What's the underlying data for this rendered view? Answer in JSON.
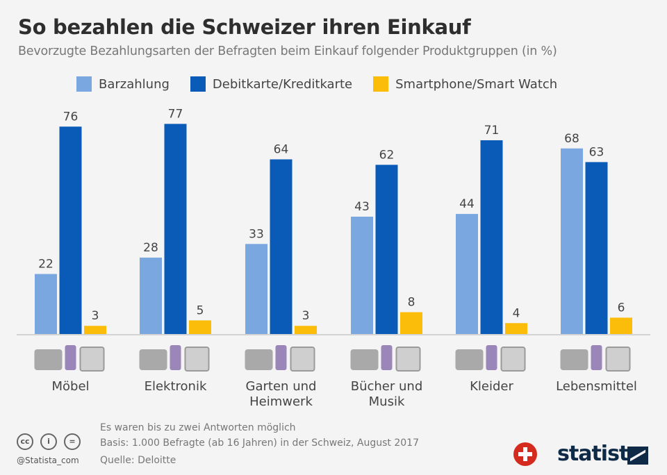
{
  "title": "So bezahlen die Schweizer ihren Einkauf",
  "subtitle": "Bevorzugte Bezahlungsarten der Befragten beim Einkauf folgender Produktgruppen (in %)",
  "chart_data": {
    "type": "bar",
    "title": "So bezahlen die Schweizer ihren Einkauf",
    "subtitle": "Bevorzugte Bezahlungsarten der Befragten beim Einkauf folgender Produktgruppen (in %)",
    "categories": [
      "Möbel",
      "Elektronik",
      "Garten und Heimwerk",
      "Bücher und Musik",
      "Kleider",
      "Lebensmittel"
    ],
    "category_lines": [
      [
        "Möbel"
      ],
      [
        "Elektronik"
      ],
      [
        "Garten und",
        "Heimwerk"
      ],
      [
        "Bücher und",
        "Musik"
      ],
      [
        "Kleider"
      ],
      [
        "Lebensmittel"
      ]
    ],
    "series": [
      {
        "name": "Barzahlung",
        "color": "#7ba7e1",
        "values": [
          22,
          28,
          33,
          43,
          44,
          68
        ]
      },
      {
        "name": "Debitkarte/Kreditkarte",
        "color": "#0a5bb8",
        "values": [
          76,
          77,
          64,
          62,
          71,
          63
        ]
      },
      {
        "name": "Smartphone/Smart Watch",
        "color": "#fbbd0a",
        "values": [
          3,
          5,
          3,
          8,
          4,
          6
        ]
      }
    ],
    "ylim": [
      0,
      80
    ],
    "grid": false,
    "legend": "top",
    "data_labels": true,
    "icons": [
      "sofa-lamp-cabinet-icon",
      "laptop-camera-phone-icon",
      "watering-can-shovel-hammer-icon",
      "books-music-note-icon",
      "dress-hoodie-boot-icon",
      "basket-banana-apple-icon"
    ]
  },
  "footer": {
    "note1": "Es waren bis zu zwei Antworten möglich",
    "note2": "Basis: 1.000 Befragte (ab 16 Jahren) in der Schweiz, August 2017",
    "source": "Quelle: Deloitte",
    "handle": "@Statista_com",
    "brand": "statista"
  }
}
